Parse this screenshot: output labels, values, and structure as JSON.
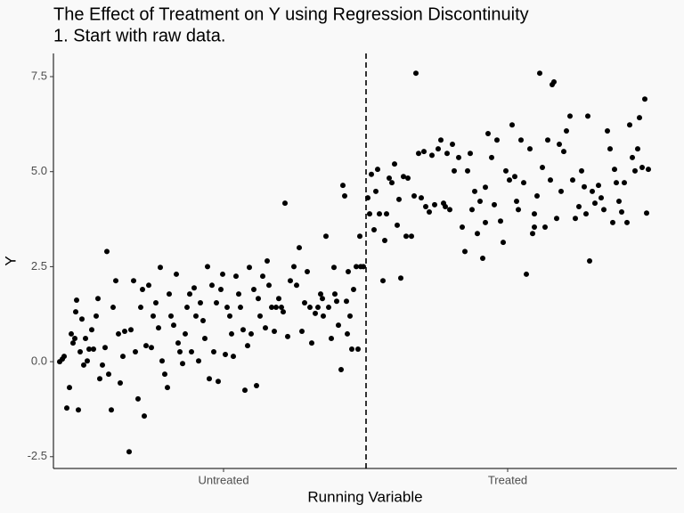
{
  "chart_data": {
    "type": "scatter",
    "title": "The Effect of Treatment on Y using Regression Discontinuity",
    "subtitle": "1. Start with raw data.",
    "x_label": "Running Variable",
    "y_label": "Y",
    "color": "#000000",
    "cutoff": 351,
    "xlim": [
      0,
      700
    ],
    "xticks": [
      {
        "value": 191,
        "label": "Untreated"
      },
      {
        "value": 510,
        "label": "Treated"
      }
    ],
    "ylim": [
      -2.81,
      8.11
    ],
    "yticks": [
      -2.5,
      {
        "value": 0,
        "label": "0.0"
      },
      2.5,
      {
        "value": 5,
        "label": "5.0"
      },
      7.5
    ],
    "x": [
      7,
      10,
      12,
      15,
      18,
      20,
      22,
      25,
      28,
      26,
      24,
      30,
      32,
      34,
      36,
      38,
      40,
      43,
      45,
      48,
      50,
      52,
      55,
      58,
      60,
      62,
      65,
      67,
      70,
      73,
      75,
      78,
      80,
      85,
      87,
      90,
      92,
      95,
      98,
      100,
      102,
      104,
      107,
      110,
      112,
      115,
      118,
      120,
      122,
      125,
      128,
      130,
      132,
      135,
      138,
      140,
      142,
      145,
      148,
      150,
      153,
      155,
      158,
      160,
      163,
      165,
      168,
      170,
      173,
      175,
      178,
      180,
      183,
      185,
      188,
      190,
      193,
      195,
      198,
      200,
      202,
      205,
      208,
      210,
      213,
      215,
      218,
      220,
      222,
      225,
      228,
      230,
      232,
      235,
      238,
      240,
      242,
      245,
      248,
      250,
      253,
      256,
      260,
      263,
      266,
      270,
      273,
      276,
      279,
      282,
      285,
      288,
      290,
      294,
      297,
      300,
      303,
      306,
      309,
      312,
      315,
      318,
      320,
      323,
      325,
      327,
      329,
      331,
      333,
      335,
      337,
      340,
      342,
      344,
      345,
      348,
      330,
      316,
      302,
      258,
      353,
      355,
      357,
      360,
      362,
      364,
      366,
      370,
      372,
      374,
      377,
      380,
      383,
      386,
      390,
      393,
      396,
      398,
      402,
      405,
      407,
      410,
      413,
      416,
      418,
      422,
      425,
      428,
      432,
      435,
      438,
      442,
      445,
      448,
      450,
      455,
      459,
      462,
      465,
      468,
      470,
      473,
      476,
      479,
      482,
      485,
      488,
      492,
      495,
      498,
      502,
      505,
      508,
      512,
      515,
      518,
      522,
      525,
      528,
      531,
      535,
      538,
      540,
      543,
      546,
      549,
      552,
      555,
      558,
      560,
      562,
      565,
      568,
      570,
      573,
      576,
      580,
      583,
      586,
      590,
      593,
      596,
      600,
      602,
      605,
      608,
      612,
      615,
      618,
      622,
      625,
      628,
      632,
      635,
      638,
      641,
      644,
      647,
      650,
      653,
      656,
      658,
      661,
      664,
      666,
      668,
      540,
      520,
      485,
      440,
      388,
      598,
      630
    ],
    "values": [
      0.0,
      0.07,
      0.14,
      -1.22,
      -0.68,
      0.73,
      0.49,
      1.31,
      -1.27,
      1.62,
      0.61,
      0.26,
      1.12,
      -0.09,
      0.61,
      0.02,
      0.33,
      0.84,
      0.33,
      1.2,
      1.66,
      -0.45,
      -0.09,
      0.37,
      2.9,
      -0.33,
      -1.27,
      1.43,
      2.13,
      0.73,
      -0.56,
      0.14,
      0.8,
      -2.37,
      0.84,
      2.13,
      0.26,
      -0.98,
      1.43,
      1.9,
      -1.43,
      0.42,
      2.01,
      0.37,
      1.2,
      1.55,
      0.89,
      2.48,
      0.02,
      -0.33,
      -0.68,
      1.78,
      1.2,
      0.96,
      2.3,
      0.49,
      0.26,
      -0.05,
      0.73,
      1.43,
      1.78,
      0.26,
      1.94,
      1.2,
      0.02,
      1.55,
      1.08,
      0.61,
      2.5,
      -0.45,
      2.01,
      0.26,
      1.55,
      -0.52,
      1.9,
      2.3,
      0.19,
      1.43,
      1.2,
      0.73,
      0.14,
      2.25,
      1.78,
      1.43,
      0.84,
      -0.75,
      0.42,
      2.48,
      0.73,
      1.9,
      -0.63,
      1.66,
      1.2,
      2.25,
      0.89,
      2.65,
      2.01,
      1.43,
      0.8,
      1.43,
      1.66,
      1.43,
      4.17,
      0.66,
      2.13,
      2.5,
      2.01,
      3.0,
      0.8,
      1.55,
      2.37,
      1.43,
      0.49,
      1.27,
      1.43,
      1.78,
      1.2,
      3.3,
      1.43,
      0.61,
      2.48,
      1.59,
      0.96,
      -0.21,
      4.64,
      4.36,
      1.59,
      2.37,
      1.2,
      0.33,
      1.9,
      2.5,
      0.33,
      3.3,
      2.5,
      2.5,
      0.73,
      1.78,
      1.66,
      1.31,
      4.31,
      3.89,
      4.93,
      3.47,
      4.48,
      5.06,
      3.89,
      2.13,
      3.19,
      3.89,
      4.83,
      4.71,
      5.2,
      3.59,
      2.2,
      4.87,
      3.3,
      4.83,
      3.3,
      4.36,
      7.59,
      5.48,
      4.31,
      5.53,
      4.08,
      3.94,
      5.43,
      4.13,
      5.6,
      5.83,
      4.17,
      5.48,
      4.0,
      5.72,
      5.02,
      5.37,
      3.54,
      2.9,
      5.02,
      5.48,
      4.0,
      4.48,
      3.37,
      4.22,
      2.72,
      4.59,
      6.0,
      5.37,
      4.13,
      5.83,
      3.7,
      3.14,
      5.02,
      4.78,
      6.23,
      4.87,
      4.0,
      5.83,
      4.71,
      2.3,
      5.6,
      3.37,
      3.54,
      4.36,
      7.59,
      5.11,
      3.54,
      5.83,
      4.78,
      7.29,
      7.36,
      3.77,
      5.72,
      4.48,
      5.53,
      6.07,
      6.46,
      4.78,
      3.77,
      4.08,
      5.02,
      4.6,
      6.46,
      2.65,
      4.48,
      4.17,
      4.64,
      4.31,
      4.0,
      6.07,
      5.6,
      3.66,
      4.71,
      4.22,
      3.94,
      4.71,
      3.66,
      6.23,
      5.37,
      5.02,
      5.6,
      6.42,
      5.11,
      6.91,
      3.91,
      5.06,
      3.89,
      4.22,
      3.66,
      4.08,
      4.27,
      3.89,
      5.06
    ]
  }
}
